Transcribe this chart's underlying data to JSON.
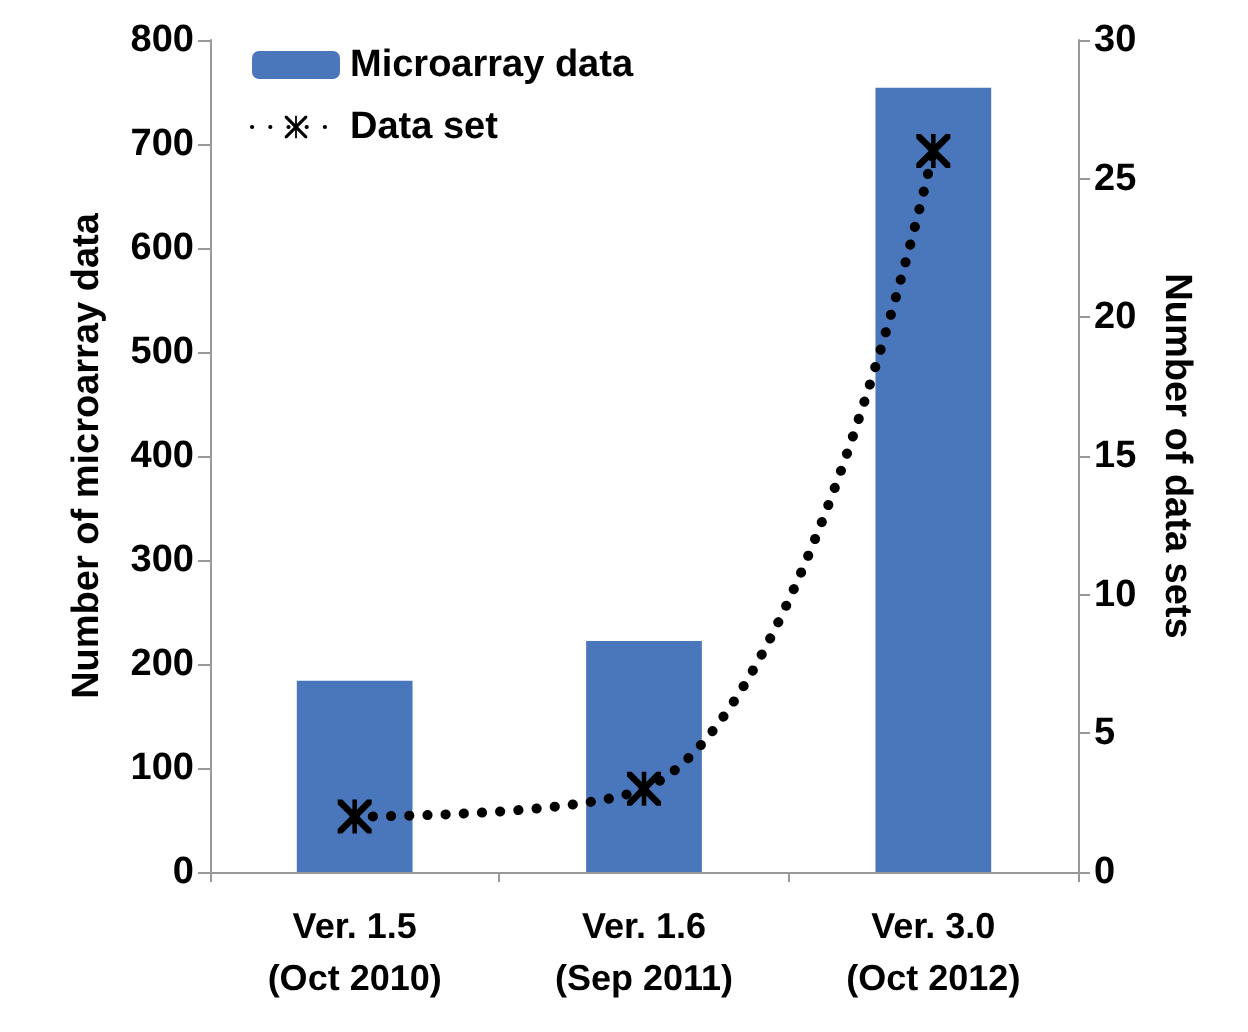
{
  "chart_data": {
    "type": "bar",
    "categories": [
      "Ver. 1.5\n(Oct 2010)",
      "Ver. 1.6\n(Sep 2011)",
      "Ver. 3.0\n(Oct 2012)"
    ],
    "ylabel": "Number of microarray data",
    "y2label": "Number of data sets",
    "series": [
      {
        "name": "Microarray data",
        "color": "#4a76bb",
        "values": [
          184,
          222,
          754
        ]
      },
      {
        "name": "Data set",
        "type": "line",
        "axis": "y2",
        "color": "#000000",
        "values": [
          2,
          3,
          26
        ],
        "marker": "cross",
        "line_style": "dotted"
      }
    ],
    "ylim": [
      0,
      800
    ],
    "yticks": [
      0,
      100,
      200,
      300,
      400,
      500,
      600,
      700,
      800
    ],
    "y2lim": [
      0,
      30
    ],
    "y2ticks": [
      0,
      5,
      10,
      15,
      20,
      25,
      30
    ],
    "grid": false,
    "legend": "top left"
  }
}
